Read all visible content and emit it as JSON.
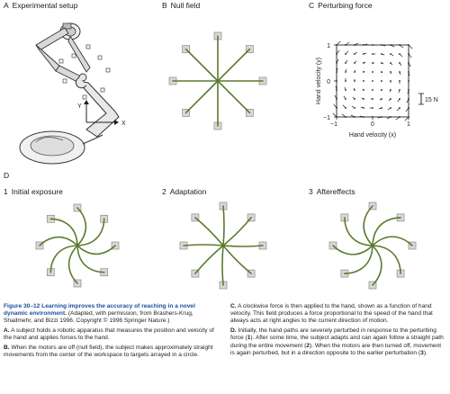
{
  "panels": {
    "a": {
      "letter": "A",
      "title": "Experimental setup",
      "axis_y": "Y",
      "axis_x": "X"
    },
    "b": {
      "letter": "B",
      "title": "Null field"
    },
    "c": {
      "letter": "C",
      "title": "Perturbing force",
      "ylabel": "Hand velocity (y)",
      "xlabel": "Hand velocity (x)",
      "tick_neg": "−1",
      "tick_zero": "0",
      "tick_pos": "1",
      "scale_label": "15 N"
    },
    "d": {
      "letter": "D"
    },
    "d1": {
      "num": "1",
      "title": "Initial exposure"
    },
    "d2": {
      "num": "2",
      "title": "Adaptation"
    },
    "d3": {
      "num": "3",
      "title": "Aftereffects"
    }
  },
  "caption": {
    "fig_label": "Figure 30–12",
    "title": "Learning improves the accuracy of reaching in a novel dynamic environment.",
    "intro": "(Adapted, with permission, from Brashers-Krug, Shadmehr, and Bizzi 1996. Copyright © 1996 Springer Nature.)",
    "a_letter": "A.",
    "a_text": "A subject holds a robotic apparatus that measures the position and velocity of the hand and applies forces to the hand.",
    "b_letter": "B.",
    "b_text": "When the motors are off (null field), the subject makes approximately straight movements from the center of the workspace to targets arrayed in a circle.",
    "c_letter": "C.",
    "c_text": "A clockwise force is then applied to the hand, shown as a function of hand velocity. This field produces a force proportional to the speed of the hand that always acts at right angles to the current direction of motion.",
    "d_letter": "D.",
    "d_text_1": "Initially, the hand paths are severely perturbed in response to the perturbing force (",
    "d_n1": "1",
    "d_text_2": "). After some time, the subject adapts and can again follow a straight path during the entire movement (",
    "d_n2": "2",
    "d_text_3": "). When the motors are then turned off, movement is again perturbed, but in a direction opposite to the earlier perturbation (",
    "d_n3": "3",
    "d_text_4": ")."
  },
  "colors": {
    "path": "#5b7a2e",
    "target": "#d8d8d8",
    "target_border": "#8a8a8a",
    "caption_blue": "#1a4fa0"
  }
}
